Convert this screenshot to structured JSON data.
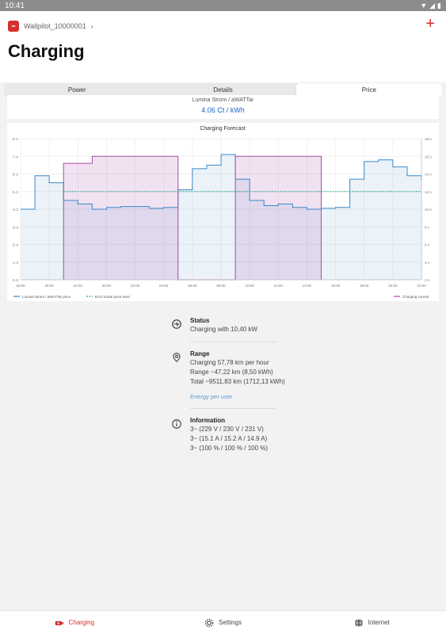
{
  "status_bar": {
    "time": "10:41",
    "icons": [
      "wifi-icon",
      "signal-icon",
      "battery-icon"
    ]
  },
  "header": {
    "breadcrumb": "Wallpilot_10000001",
    "title": "Charging",
    "add_icon": "plus-icon"
  },
  "tabs": [
    {
      "label": "Power",
      "active": false
    },
    {
      "label": "Details",
      "active": false
    },
    {
      "label": "Price",
      "active": true
    }
  ],
  "price": {
    "label": "Lumina Strom / aWATTar",
    "value": "4.06 Ct / kWh"
  },
  "chart_data": {
    "type": "line",
    "title": "Charging Forecast",
    "x_labels": [
      "18:00",
      "20:00",
      "22:00",
      "00:00",
      "02:00",
      "04:00",
      "06:00",
      "08:00",
      "10:00",
      "12:00",
      "14:00",
      "16:00",
      "18:00",
      "20:00",
      "22:00"
    ],
    "y_left_labels": [
      "0 ct",
      "1 ct",
      "2 ct",
      "3 ct",
      "4 ct",
      "5 ct",
      "6 ct",
      "7 ct",
      "8 ct"
    ],
    "y_right_labels": [
      "2 A",
      "4 A",
      "6 A",
      "8 A",
      "10 A",
      "12 A",
      "14 A",
      "16 A",
      "18 A"
    ],
    "y_left_range": [
      0,
      8
    ],
    "y_right_range": [
      2,
      18
    ],
    "x_range_hours": [
      18,
      46
    ],
    "price_series": {
      "name": "Lumina Strom / aWATTar price",
      "color": "#3a86c8",
      "points": [
        [
          18,
          4.0
        ],
        [
          19,
          4.0
        ],
        [
          19,
          5.9
        ],
        [
          20,
          5.9
        ],
        [
          20,
          5.5
        ],
        [
          21,
          5.5
        ],
        [
          21,
          4.5
        ],
        [
          22,
          4.5
        ],
        [
          22,
          4.3
        ],
        [
          23,
          4.3
        ],
        [
          23,
          4.0
        ],
        [
          24,
          4.0
        ],
        [
          24,
          4.1
        ],
        [
          25,
          4.1
        ],
        [
          25,
          4.15
        ],
        [
          27,
          4.15
        ],
        [
          27,
          4.05
        ],
        [
          28,
          4.05
        ],
        [
          28,
          4.1
        ],
        [
          29,
          4.1
        ],
        [
          29,
          5.1
        ],
        [
          30,
          5.1
        ],
        [
          30,
          6.3
        ],
        [
          31,
          6.3
        ],
        [
          31,
          6.5
        ],
        [
          32,
          6.5
        ],
        [
          32,
          7.1
        ],
        [
          33,
          7.1
        ],
        [
          33,
          5.7
        ],
        [
          34,
          5.7
        ],
        [
          34,
          4.5
        ],
        [
          35,
          4.5
        ],
        [
          35,
          4.2
        ],
        [
          36,
          4.2
        ],
        [
          36,
          4.3
        ],
        [
          37,
          4.3
        ],
        [
          37,
          4.1
        ],
        [
          38,
          4.1
        ],
        [
          38,
          4.0
        ],
        [
          39,
          4.0
        ],
        [
          39,
          4.05
        ],
        [
          40,
          4.05
        ],
        [
          40,
          4.1
        ],
        [
          41,
          4.1
        ],
        [
          41,
          5.7
        ],
        [
          42,
          5.7
        ],
        [
          42,
          6.7
        ],
        [
          43,
          6.7
        ],
        [
          43,
          6.8
        ],
        [
          44,
          6.8
        ],
        [
          44,
          6.4
        ],
        [
          45,
          6.4
        ],
        [
          45,
          5.9
        ],
        [
          46,
          5.9
        ],
        [
          46,
          5.6
        ]
      ]
    },
    "eco_series": {
      "name": "ECO mode price level",
      "color": "#26a69a",
      "value": 5.0,
      "x_start": 21
    },
    "current_series": {
      "name": "Charging current",
      "color": "#a64ca6",
      "points": [
        [
          21,
          2
        ],
        [
          21,
          15.2
        ],
        [
          22,
          15.2
        ],
        [
          23,
          15.2
        ],
        [
          23,
          16.0
        ],
        [
          29,
          16.0
        ],
        [
          29,
          2
        ],
        [
          33,
          2
        ],
        [
          33,
          16.0
        ],
        [
          39,
          16.0
        ],
        [
          39,
          2
        ]
      ]
    },
    "legend": [
      "Lumina Strom / aWATTar price",
      "ECO mode price level",
      "Charging current"
    ]
  },
  "info": {
    "status": {
      "heading": "Status",
      "lines": [
        "Charging with 10,40 kW"
      ]
    },
    "range": {
      "heading": "Range",
      "lines": [
        "Charging 57,78 km per hour",
        "Range ~47,22 km (8,50 kWh)",
        "Total ~9511,83 km (1712,13 kWh)"
      ],
      "link": "Energy per user"
    },
    "information": {
      "heading": "Information",
      "lines": [
        "3~ (229 V / 230 V / 231 V)",
        "3~ (15.1 A / 15.2 A / 14.9 A)",
        "3~ (100 % / 100 % / 100 %)"
      ]
    }
  },
  "bottom_nav": [
    {
      "label": "Charging",
      "icon": "car-charging-icon",
      "active": true
    },
    {
      "label": "Settings",
      "icon": "gear-icon",
      "active": false
    },
    {
      "label": "Internet",
      "icon": "globe-icon",
      "active": false
    }
  ],
  "colors": {
    "accent": "#d32f2f",
    "link": "#5a9bd5",
    "price_blue": "#1e63c8"
  }
}
